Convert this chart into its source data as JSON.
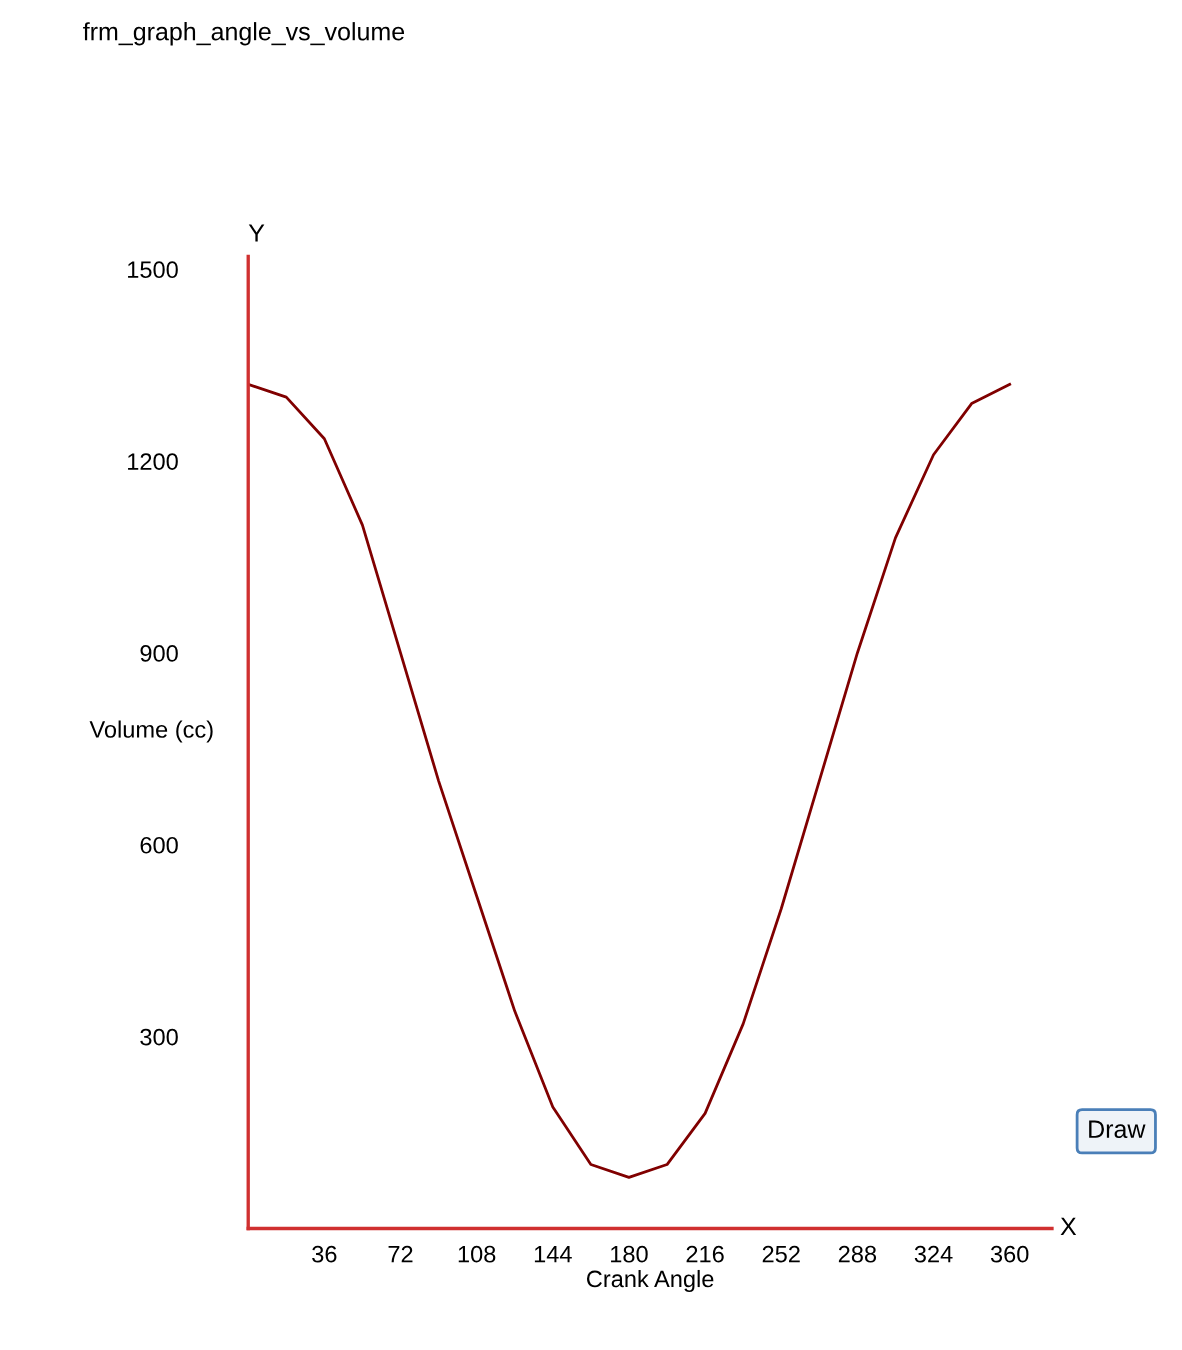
{
  "chart_data": {
    "type": "line",
    "title": "frm_graph_angle_vs_volume",
    "xlabel": "Crank Angle",
    "ylabel": "Volume (cc)",
    "x": [
      0,
      18,
      36,
      54,
      72,
      90,
      108,
      126,
      144,
      162,
      180,
      198,
      216,
      234,
      252,
      270,
      288,
      306,
      324,
      342,
      360
    ],
    "series": [
      {
        "color": "#800000",
        "values": [
          1320,
          1300,
          1235,
          1100,
          900,
          700,
          520,
          340,
          190,
          100,
          80,
          100,
          180,
          320,
          500,
          700,
          900,
          1080,
          1210,
          1290,
          1320
        ]
      }
    ],
    "xlim": [
      0,
      380
    ],
    "ylim": [
      0,
      1520
    ],
    "xticks": [
      36,
      72,
      108,
      144,
      180,
      216,
      252,
      288,
      324,
      360
    ],
    "yticks": [
      300,
      600,
      900,
      1200,
      1500
    ],
    "annotations": [
      "X",
      "Y",
      "Draw"
    ],
    "grid": false,
    "legend": false,
    "marker": "none",
    "line_style": "solid"
  }
}
